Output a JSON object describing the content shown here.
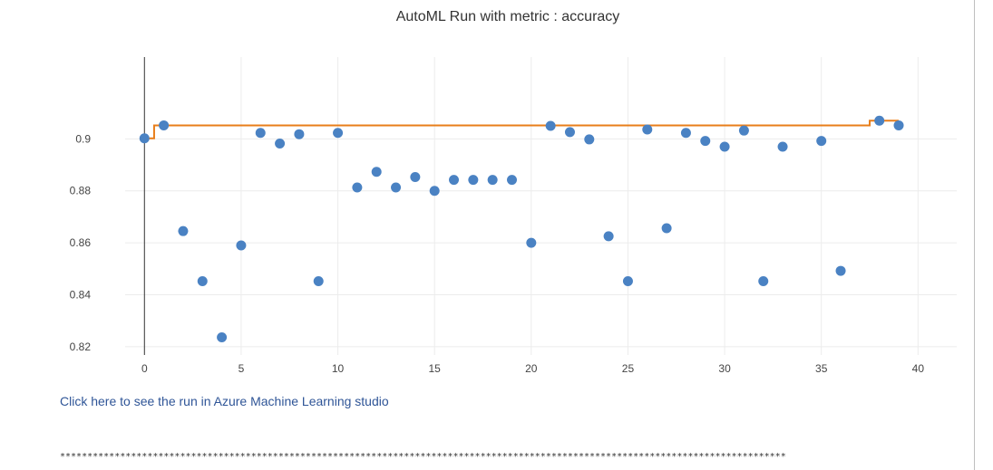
{
  "chart_data": {
    "type": "scatter",
    "title": "AutoML Run with metric : accuracy",
    "xlabel": "",
    "ylabel": "",
    "xlim": [
      -7,
      42
    ],
    "ylim": [
      0.8168,
      0.9315
    ],
    "x_ticks": [
      0,
      5,
      10,
      15,
      20,
      25,
      30,
      35,
      40
    ],
    "x_tick_labels": [
      "0",
      "5",
      "10",
      "15",
      "20",
      "25",
      "30",
      "35",
      "40"
    ],
    "y_ticks": [
      0.82,
      0.84,
      0.86,
      0.88,
      0.9
    ],
    "y_tick_labels": [
      "0.82",
      "0.84",
      "0.86",
      "0.88",
      "0.9"
    ],
    "grid": true,
    "legend": "none",
    "series": [
      {
        "mode": "markers",
        "color": "#4a82c3",
        "x": [
          0,
          1,
          2,
          3,
          4,
          5,
          6,
          7,
          8,
          9,
          10,
          11,
          12,
          13,
          14,
          15,
          16,
          17,
          18,
          19,
          20,
          21,
          22,
          23,
          24,
          25,
          26,
          27,
          28,
          29,
          30,
          31,
          32,
          33,
          35,
          36,
          38,
          39
        ],
        "y": [
          0.9002,
          0.9052,
          0.8645,
          0.8452,
          0.8236,
          0.859,
          0.9023,
          0.8982,
          0.9018,
          0.8452,
          0.9023,
          0.8813,
          0.8873,
          0.8813,
          0.8853,
          0.88,
          0.8842,
          0.8842,
          0.8842,
          0.8842,
          0.86,
          0.905,
          0.9026,
          0.8998,
          0.8625,
          0.8452,
          0.9036,
          0.8656,
          0.9023,
          0.8992,
          0.897,
          0.9032,
          0.8452,
          0.897,
          0.8992,
          0.8492,
          0.907,
          0.9052
        ]
      },
      {
        "mode": "best-so-far-step",
        "color": "#e87e1a",
        "x": [
          0,
          1,
          2,
          3,
          4,
          5,
          6,
          7,
          8,
          9,
          10,
          11,
          12,
          13,
          14,
          15,
          16,
          17,
          18,
          19,
          20,
          21,
          22,
          23,
          24,
          25,
          26,
          27,
          28,
          29,
          30,
          31,
          32,
          33,
          34,
          35,
          36,
          37,
          38,
          39
        ],
        "y": [
          0.9002,
          0.9052,
          0.9052,
          0.9052,
          0.9052,
          0.9052,
          0.9052,
          0.9052,
          0.9052,
          0.9052,
          0.9052,
          0.9052,
          0.9052,
          0.9052,
          0.9052,
          0.9052,
          0.9052,
          0.9052,
          0.9052,
          0.9052,
          0.9052,
          0.9052,
          0.9052,
          0.9052,
          0.9052,
          0.9052,
          0.9052,
          0.9052,
          0.9052,
          0.9052,
          0.9052,
          0.9052,
          0.9052,
          0.9052,
          0.9052,
          0.9052,
          0.9052,
          0.9052,
          0.907,
          0.907
        ]
      }
    ]
  },
  "links": {
    "azure_link_text": "Click here to see the run in Azure Machine Learning studio"
  },
  "output": {
    "separator": "********************************************************************************************************************************************"
  }
}
